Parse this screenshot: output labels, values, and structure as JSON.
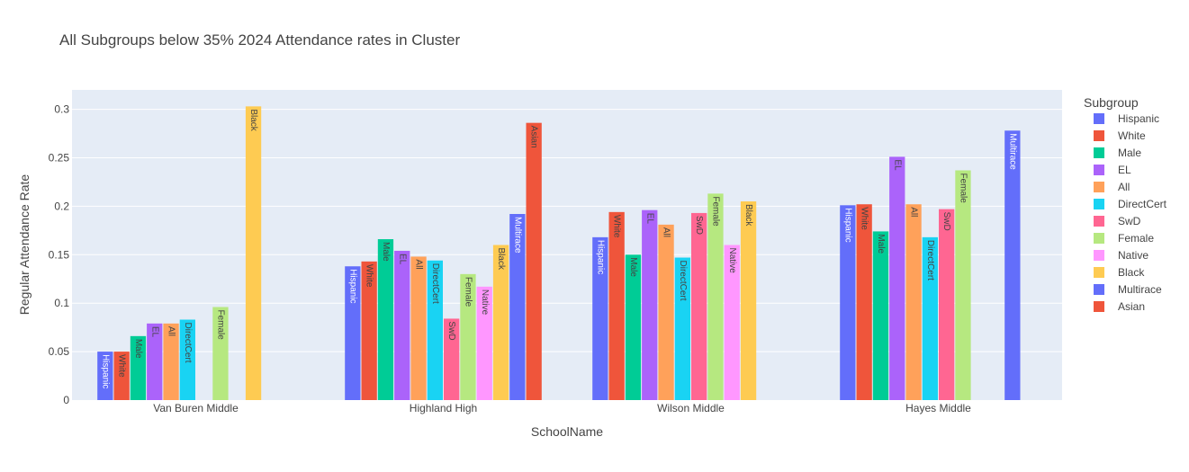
{
  "chart_data": {
    "type": "bar",
    "title": "All Subgroups below 35% 2024 Attendance rates in Cluster",
    "xlabel": "SchoolName",
    "ylabel": "Regular Attendance Rate",
    "ylim": [
      0,
      0.32
    ],
    "yticks": [
      {
        "value": 0,
        "label": "0"
      },
      {
        "value": 0.05,
        "label": "0.05"
      },
      {
        "value": 0.1,
        "label": "0.1"
      },
      {
        "value": 0.15,
        "label": "0.15"
      },
      {
        "value": 0.2,
        "label": "0.2"
      },
      {
        "value": 0.25,
        "label": "0.25"
      },
      {
        "value": 0.3,
        "label": "0.3"
      }
    ],
    "grid": true,
    "legend_title": "Subgroup",
    "legend_position": "right",
    "categories": [
      "Van Buren Middle",
      "Highland High",
      "Wilson Middle",
      "Hayes Middle"
    ],
    "series": [
      {
        "name": "Hispanic",
        "color": "#636efa",
        "label_color": "#ffffff",
        "values": [
          0.05,
          0.138,
          0.168,
          0.201
        ]
      },
      {
        "name": "White",
        "color": "#ef553b",
        "label_color": "#444444",
        "values": [
          0.05,
          0.143,
          0.194,
          0.202
        ]
      },
      {
        "name": "Male",
        "color": "#00cc96",
        "label_color": "#444444",
        "values": [
          0.066,
          0.166,
          0.15,
          0.174
        ]
      },
      {
        "name": "EL",
        "color": "#ab63fa",
        "label_color": "#444444",
        "values": [
          0.079,
          0.154,
          0.196,
          0.251
        ]
      },
      {
        "name": "All",
        "color": "#ffa15a",
        "label_color": "#444444",
        "values": [
          0.079,
          0.148,
          0.181,
          0.202
        ]
      },
      {
        "name": "DirectCert",
        "color": "#19d3f3",
        "label_color": "#444444",
        "values": [
          0.083,
          0.144,
          0.147,
          0.168
        ]
      },
      {
        "name": "SwD",
        "color": "#ff6692",
        "label_color": "#444444",
        "values": [
          null,
          0.084,
          0.193,
          0.197
        ]
      },
      {
        "name": "Female",
        "color": "#b6e880",
        "label_color": "#444444",
        "values": [
          0.096,
          0.13,
          0.213,
          0.237
        ]
      },
      {
        "name": "Native",
        "color": "#ff97ff",
        "label_color": "#444444",
        "values": [
          null,
          0.117,
          0.16,
          null
        ]
      },
      {
        "name": "Black",
        "color": "#fecb52",
        "label_color": "#444444",
        "values": [
          0.303,
          0.16,
          0.205,
          null
        ]
      },
      {
        "name": "Multirace",
        "color": "#636efa",
        "label_color": "#ffffff",
        "values": [
          null,
          0.192,
          null,
          0.278
        ]
      },
      {
        "name": "Asian",
        "color": "#ef553b",
        "label_color": "#444444",
        "values": [
          null,
          0.286,
          null,
          null
        ]
      }
    ]
  }
}
